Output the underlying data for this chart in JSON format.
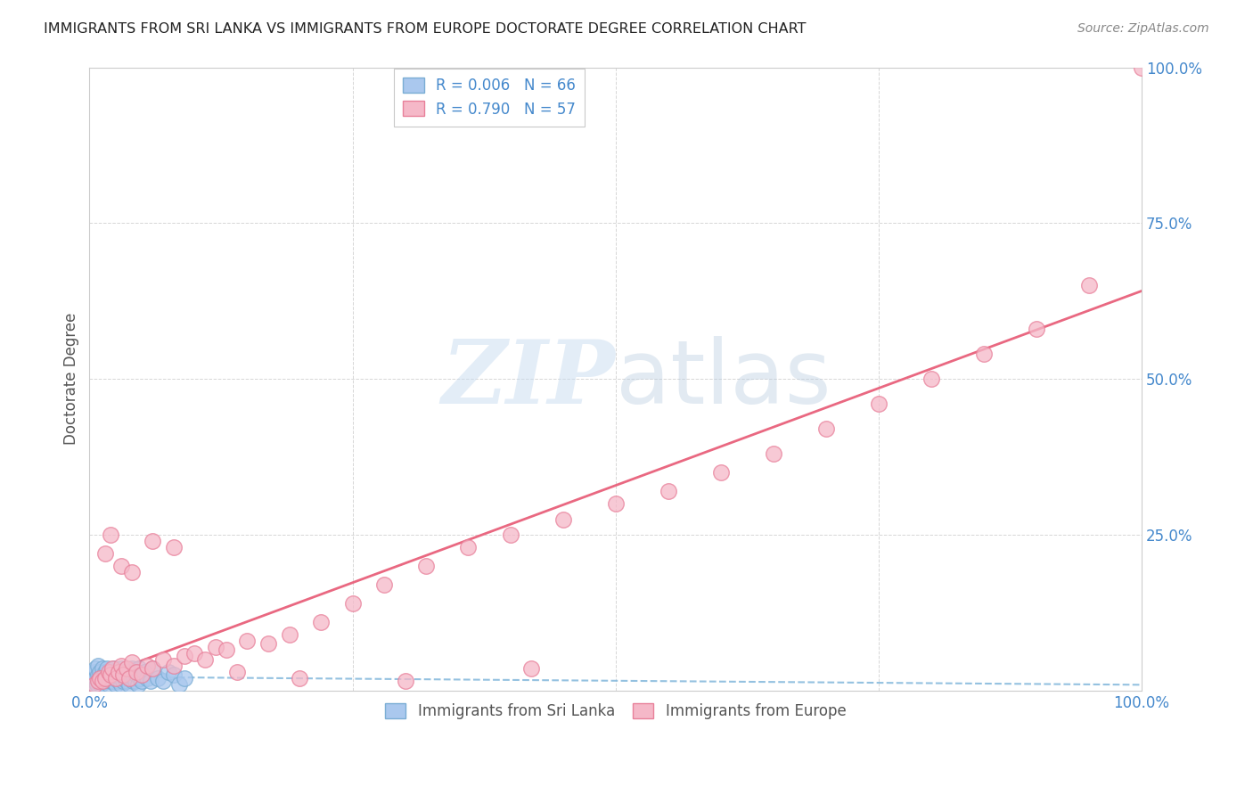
{
  "title": "IMMIGRANTS FROM SRI LANKA VS IMMIGRANTS FROM EUROPE DOCTORATE DEGREE CORRELATION CHART",
  "source": "Source: ZipAtlas.com",
  "ylabel": "Doctorate Degree",
  "sri_lanka_color": "#aac8ee",
  "sri_lanka_edge": "#7aadd4",
  "europe_color": "#f5b8c8",
  "europe_edge": "#e8809a",
  "sri_lanka_line_color": "#88bbdd",
  "europe_line_color": "#e8607a",
  "background_color": "#ffffff",
  "grid_color": "#cccccc",
  "watermark_color": "#d0e4f5",
  "title_color": "#222222",
  "axis_tick_color": "#4488cc",
  "ylabel_color": "#555555",
  "legend_label_color": "#4488cc",
  "source_color": "#888888",
  "bottom_legend_color": "#555555",
  "sri_lanka_R": 0.006,
  "sri_lanka_N": 66,
  "europe_R": 0.79,
  "europe_N": 57,
  "xlim": [
    0,
    100
  ],
  "ylim": [
    0,
    100
  ],
  "sri_lanka_x": [
    0.2,
    0.3,
    0.4,
    0.5,
    0.5,
    0.6,
    0.6,
    0.7,
    0.8,
    0.8,
    0.9,
    1.0,
    1.0,
    1.1,
    1.2,
    1.2,
    1.3,
    1.4,
    1.5,
    1.5,
    1.6,
    1.7,
    1.8,
    1.9,
    2.0,
    2.0,
    2.1,
    2.2,
    2.3,
    2.4,
    2.5,
    2.6,
    2.7,
    2.8,
    2.9,
    3.0,
    3.0,
    3.1,
    3.2,
    3.3,
    3.4,
    3.5,
    3.6,
    3.7,
    3.8,
    3.9,
    4.0,
    4.1,
    4.2,
    4.3,
    4.4,
    4.5,
    4.6,
    4.7,
    4.8,
    5.0,
    5.2,
    5.5,
    5.8,
    6.0,
    6.5,
    7.0,
    7.5,
    8.0,
    8.5,
    9.0
  ],
  "sri_lanka_y": [
    1.5,
    2.5,
    1.0,
    3.0,
    1.5,
    2.0,
    3.5,
    1.0,
    2.5,
    4.0,
    1.5,
    2.0,
    3.0,
    1.0,
    2.5,
    3.5,
    1.5,
    2.0,
    3.0,
    1.5,
    2.0,
    3.5,
    1.0,
    2.5,
    1.5,
    3.0,
    2.0,
    1.5,
    3.5,
    2.0,
    1.0,
    2.5,
    3.0,
    1.5,
    2.0,
    1.0,
    3.5,
    2.5,
    1.5,
    3.0,
    2.0,
    1.5,
    3.0,
    2.5,
    1.0,
    2.0,
    3.5,
    1.5,
    2.0,
    3.0,
    1.5,
    2.5,
    1.0,
    3.5,
    2.0,
    1.5,
    3.0,
    2.0,
    1.5,
    3.5,
    2.0,
    1.5,
    3.0,
    2.5,
    1.0,
    2.0
  ],
  "europe_x": [
    0.5,
    0.8,
    1.0,
    1.2,
    1.5,
    1.8,
    2.0,
    2.2,
    2.5,
    2.8,
    3.0,
    3.2,
    3.5,
    3.8,
    4.0,
    4.5,
    5.0,
    5.5,
    6.0,
    7.0,
    8.0,
    9.0,
    10.0,
    11.0,
    12.0,
    13.0,
    15.0,
    17.0,
    19.0,
    22.0,
    25.0,
    28.0,
    32.0,
    36.0,
    40.0,
    45.0,
    50.0,
    55.0,
    60.0,
    65.0,
    70.0,
    75.0,
    80.0,
    85.0,
    90.0,
    95.0,
    100.0,
    1.5,
    2.0,
    3.0,
    4.0,
    6.0,
    8.0,
    14.0,
    20.0,
    30.0,
    42.0
  ],
  "europe_y": [
    1.0,
    1.5,
    2.0,
    1.5,
    2.0,
    3.0,
    2.5,
    3.5,
    2.0,
    3.0,
    4.0,
    2.5,
    3.5,
    2.0,
    4.5,
    3.0,
    2.5,
    4.0,
    3.5,
    5.0,
    4.0,
    5.5,
    6.0,
    5.0,
    7.0,
    6.5,
    8.0,
    7.5,
    9.0,
    11.0,
    14.0,
    17.0,
    20.0,
    23.0,
    25.0,
    27.5,
    30.0,
    32.0,
    35.0,
    38.0,
    42.0,
    46.0,
    50.0,
    54.0,
    58.0,
    65.0,
    100.0,
    22.0,
    25.0,
    20.0,
    19.0,
    24.0,
    23.0,
    3.0,
    2.0,
    1.5,
    3.5
  ]
}
